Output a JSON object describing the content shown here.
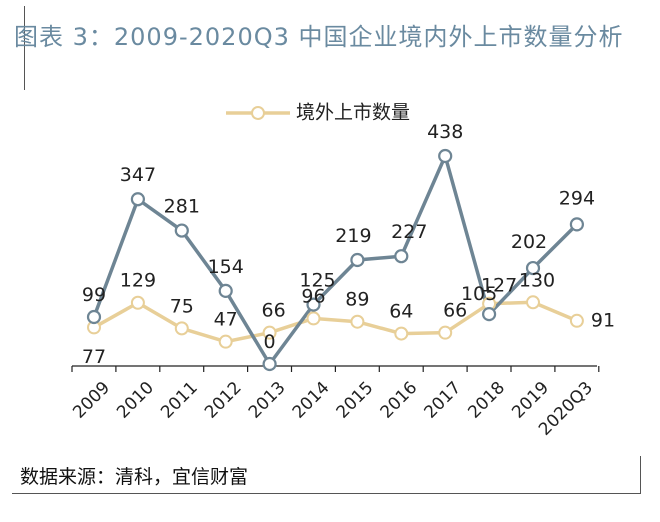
{
  "title": "图表 3：2009-2020Q3 中国企业境内外上市数量分析",
  "source": "数据来源：清科，宜信财富",
  "colors": {
    "domestic": "#6e8594",
    "overseas": "#e8cf98",
    "title": "#6a8aa0"
  },
  "chart_data": {
    "type": "line",
    "categories": [
      "2009",
      "2010",
      "2011",
      "2012",
      "2013",
      "2014",
      "2015",
      "2016",
      "2017",
      "2018",
      "2019",
      "2020Q3"
    ],
    "series": [
      {
        "name": "",
        "color": "#6e8594",
        "values": [
          99,
          347,
          281,
          154,
          0,
          125,
          219,
          227,
          438,
          105,
          202,
          294
        ]
      },
      {
        "name": "境外上市数量",
        "color": "#e8cf98",
        "values": [
          77,
          129,
          75,
          47,
          66,
          96,
          89,
          64,
          66,
          127,
          130,
          91
        ]
      }
    ],
    "ylim": [
      0,
      460
    ],
    "legend": "top-center",
    "grid": false
  }
}
